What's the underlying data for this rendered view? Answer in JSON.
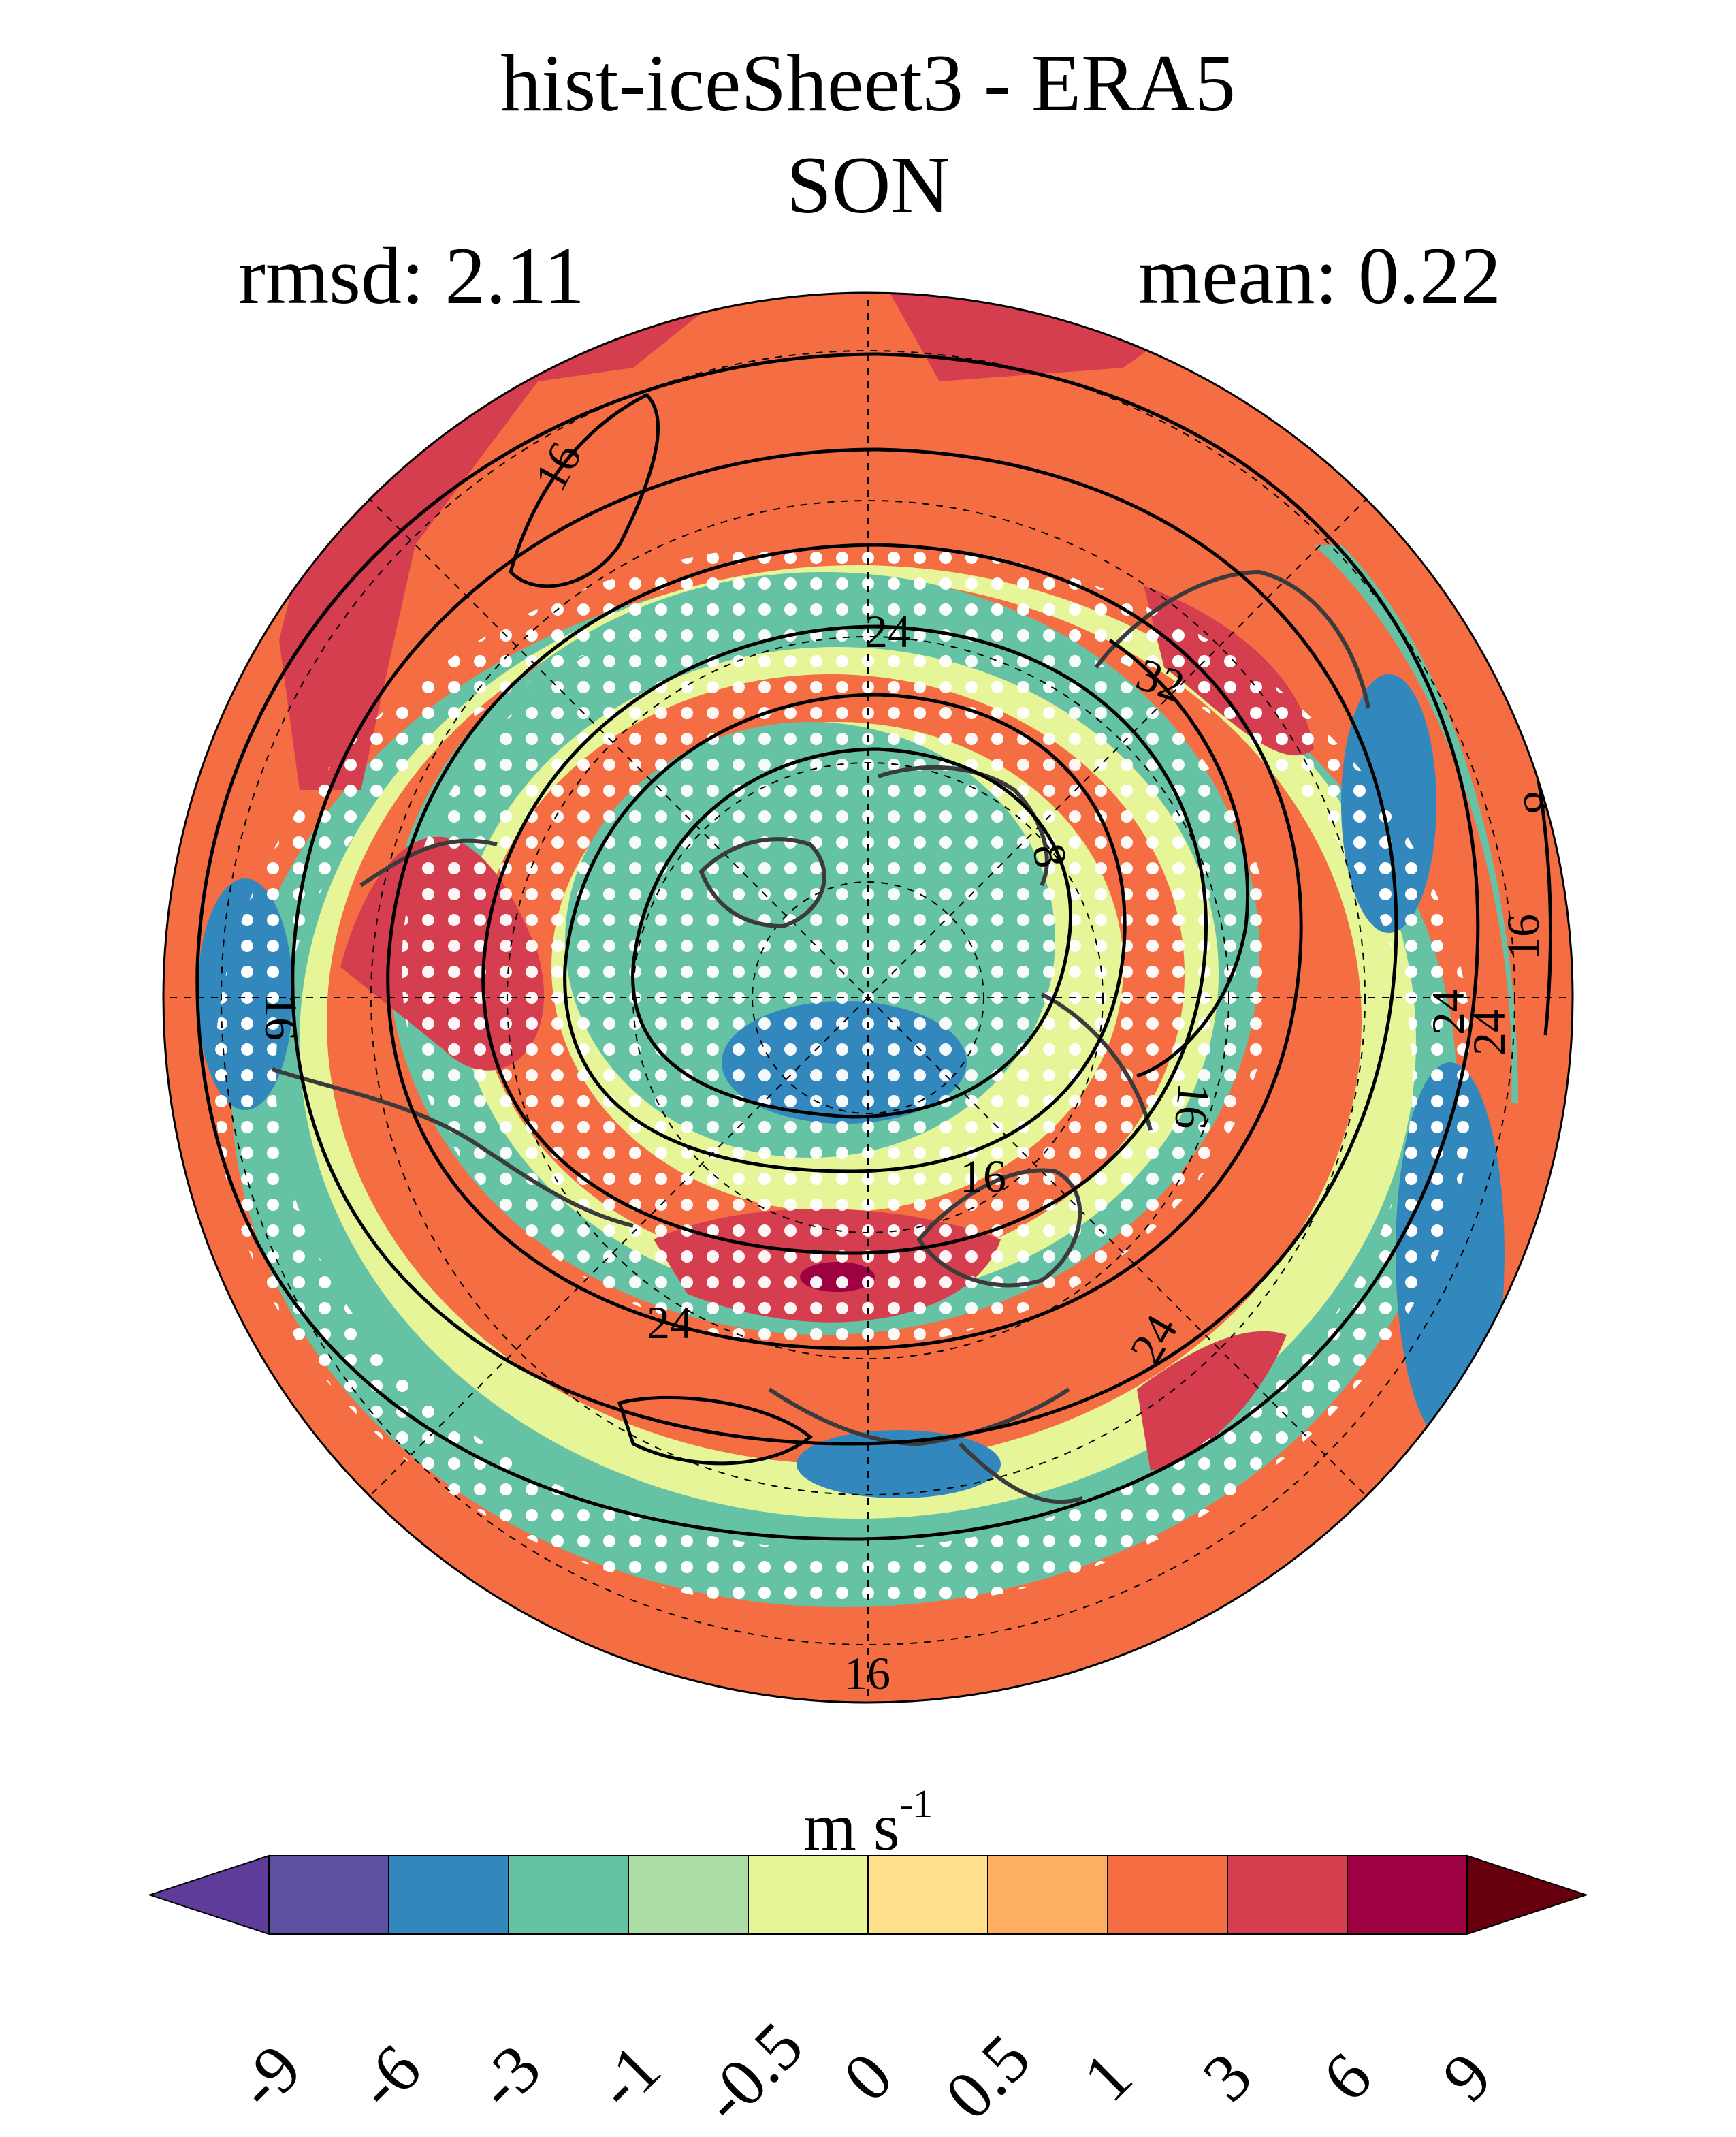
{
  "title": "hist-iceSheet3 - ERA5",
  "subtitle": "SON",
  "stats": {
    "rmsd_label": "rmsd: 2.11",
    "mean_label": "mean: 0.22"
  },
  "map": {
    "projection": "north-polar-stereographic",
    "stippling": "white dots mark significant differences",
    "contour_labels": [
      "16",
      "24",
      "24",
      "32",
      "8",
      "8",
      "16",
      "16",
      "16",
      "24",
      "16",
      "24",
      "24",
      "16"
    ]
  },
  "colorbar": {
    "units_base": "m s",
    "units_exp": "-1",
    "ticks": [
      "-9",
      "-6",
      "-3",
      "-1",
      "-0.5",
      "0",
      "0.5",
      "1",
      "3",
      "6",
      "9"
    ],
    "colors": [
      "#5e4fa2",
      "#3288bd",
      "#66c2a5",
      "#abdda4",
      "#e6f598",
      "#fee08b",
      "#fdae61",
      "#f46d43",
      "#d53e4f",
      "#9e0142"
    ],
    "under_color": "#5e3c99",
    "over_color": "#67000d"
  }
}
